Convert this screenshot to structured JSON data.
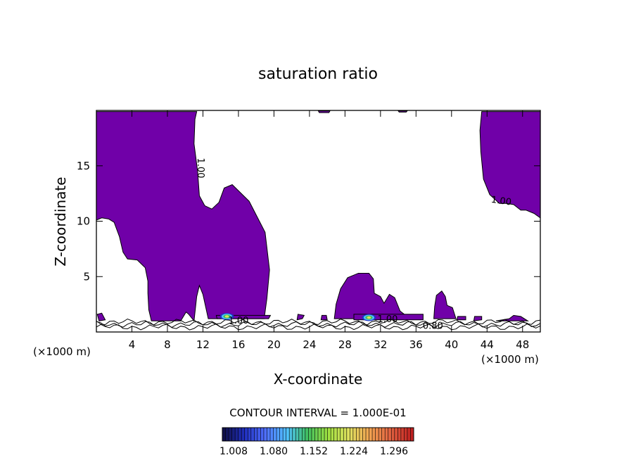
{
  "chart_data": {
    "type": "heatmap",
    "title": "saturation ratio",
    "xlabel": "X-coordinate",
    "ylabel": "Z-coordinate",
    "x_unit_label": "(×1000 m)",
    "y_unit_label": "(×1000 m)",
    "xlim": [
      0,
      50
    ],
    "ylim": [
      0,
      20
    ],
    "x_ticks": [
      4,
      8,
      12,
      16,
      20,
      24,
      28,
      32,
      36,
      40,
      44,
      48
    ],
    "y_ticks": [
      5,
      10,
      15
    ],
    "contour_interval_label": "CONTOUR INTERVAL = 1.000E-01",
    "contour_labels": [
      {
        "text": "1.00",
        "x": 11.7,
        "z": 14.8,
        "angle": 90
      },
      {
        "text": "1.00",
        "x": 45.6,
        "z": 11.8,
        "angle": 8
      },
      {
        "text": "1.00",
        "x": 16.0,
        "z": 1.0,
        "angle": 0
      },
      {
        "text": "1.00",
        "x": 32.8,
        "z": 1.1,
        "angle": 0
      },
      {
        "text": "0.80",
        "x": 37.9,
        "z": 0.5,
        "angle": 0
      }
    ],
    "colorbar": {
      "ticks": [
        "1.008",
        "1.080",
        "1.152",
        "1.224",
        "1.296"
      ],
      "colors": [
        "#10104a",
        "#2030c0",
        "#5070ff",
        "#50c0ff",
        "#40c060",
        "#a0e040",
        "#e0e060",
        "#f0a050",
        "#e06040",
        "#c02020"
      ]
    },
    "supersaturated_fill_color": "#7000a8",
    "supersaturated_regions": [
      [
        [
          0,
          10.1
        ],
        [
          0.6,
          10.3
        ],
        [
          1.4,
          10.2
        ],
        [
          2.0,
          9.9
        ],
        [
          2.6,
          8.6
        ],
        [
          3.0,
          7.2
        ],
        [
          3.5,
          6.6
        ],
        [
          4.6,
          6.5
        ],
        [
          5.5,
          5.8
        ],
        [
          5.8,
          4.6
        ],
        [
          5.8,
          3.5
        ],
        [
          5.9,
          2.0
        ],
        [
          6.2,
          1.0
        ],
        [
          9.5,
          1.0
        ],
        [
          10.1,
          1.8
        ],
        [
          10.4,
          1.6
        ],
        [
          11.0,
          1.0
        ],
        [
          11.3,
          3.2
        ],
        [
          11.6,
          4.2
        ],
        [
          12.0,
          3.4
        ],
        [
          12.6,
          1.2
        ],
        [
          18.9,
          1.2
        ],
        [
          19.2,
          3.0
        ],
        [
          19.5,
          5.6
        ],
        [
          19.0,
          9.0
        ],
        [
          17.2,
          11.8
        ],
        [
          15.3,
          13.3
        ],
        [
          14.4,
          13.0
        ],
        [
          13.8,
          11.7
        ],
        [
          13.0,
          11.1
        ],
        [
          12.2,
          11.4
        ],
        [
          11.6,
          12.3
        ],
        [
          11.4,
          14.5
        ],
        [
          11.0,
          17.0
        ],
        [
          11.1,
          19.2
        ],
        [
          11.3,
          19.9
        ],
        [
          0,
          19.9
        ]
      ],
      [
        [
          43.4,
          19.9
        ],
        [
          43.2,
          18.2
        ],
        [
          43.3,
          16.3
        ],
        [
          43.6,
          13.8
        ],
        [
          44.3,
          12.4
        ],
        [
          45.4,
          11.6
        ],
        [
          46.2,
          11.6
        ],
        [
          47.0,
          11.5
        ],
        [
          47.8,
          11.0
        ],
        [
          48.4,
          11.0
        ],
        [
          49.3,
          10.7
        ],
        [
          50,
          10.3
        ],
        [
          50,
          19.9
        ]
      ],
      [
        [
          26.8,
          1.2
        ],
        [
          27.0,
          2.5
        ],
        [
          27.5,
          3.9
        ],
        [
          28.3,
          4.9
        ],
        [
          29.5,
          5.3
        ],
        [
          30.7,
          5.3
        ],
        [
          31.2,
          4.8
        ],
        [
          31.3,
          3.5
        ],
        [
          32.0,
          3.2
        ],
        [
          32.4,
          2.6
        ],
        [
          33.0,
          3.4
        ],
        [
          33.6,
          3.1
        ],
        [
          34.2,
          1.9
        ],
        [
          35.0,
          1.4
        ],
        [
          36.5,
          1.2
        ]
      ],
      [
        [
          38.0,
          1.2
        ],
        [
          38.1,
          2.3
        ],
        [
          38.3,
          3.3
        ],
        [
          38.9,
          3.7
        ],
        [
          39.3,
          3.2
        ],
        [
          39.5,
          2.4
        ],
        [
          40.1,
          2.2
        ],
        [
          40.5,
          1.2
        ]
      ],
      [
        [
          25.0,
          19.95
        ],
        [
          26.3,
          19.95
        ],
        [
          26.2,
          19.8
        ],
        [
          25.1,
          19.8
        ]
      ],
      [
        [
          34.0,
          19.95
        ],
        [
          35.0,
          19.95
        ],
        [
          34.9,
          19.85
        ],
        [
          34.1,
          19.85
        ]
      ],
      [
        [
          0.1,
          1.6
        ],
        [
          0.6,
          1.7
        ],
        [
          1.0,
          1.1
        ],
        [
          0.3,
          1.0
        ]
      ],
      [
        [
          13.6,
          1.2
        ],
        [
          19.4,
          1.2
        ],
        [
          19.6,
          1.5
        ],
        [
          13.5,
          1.5
        ]
      ],
      [
        [
          22.6,
          1.1
        ],
        [
          23.2,
          1.2
        ],
        [
          23.4,
          1.5
        ],
        [
          22.7,
          1.6
        ]
      ],
      [
        [
          25.3,
          1.1
        ],
        [
          26.0,
          1.1
        ],
        [
          25.9,
          1.5
        ],
        [
          25.4,
          1.5
        ]
      ],
      [
        [
          29.0,
          1.1
        ],
        [
          36.8,
          1.1
        ],
        [
          36.8,
          1.6
        ],
        [
          29.0,
          1.6
        ]
      ],
      [
        [
          40.6,
          1.1
        ],
        [
          41.6,
          1.1
        ],
        [
          41.6,
          1.4
        ],
        [
          40.7,
          1.4
        ]
      ],
      [
        [
          42.5,
          1.0
        ],
        [
          43.4,
          1.1
        ],
        [
          43.4,
          1.4
        ],
        [
          42.6,
          1.4
        ]
      ],
      [
        [
          45.0,
          1.0
        ],
        [
          46.5,
          1.2
        ],
        [
          47.0,
          1.5
        ],
        [
          47.8,
          1.4
        ],
        [
          48.6,
          1.0
        ]
      ]
    ],
    "peak_spots": [
      {
        "x": 14.7,
        "z": 1.4
      },
      {
        "x": 30.7,
        "z": 1.3
      }
    ],
    "near_surface_contours_z": [
      0.45,
      0.7,
      0.9
    ]
  }
}
